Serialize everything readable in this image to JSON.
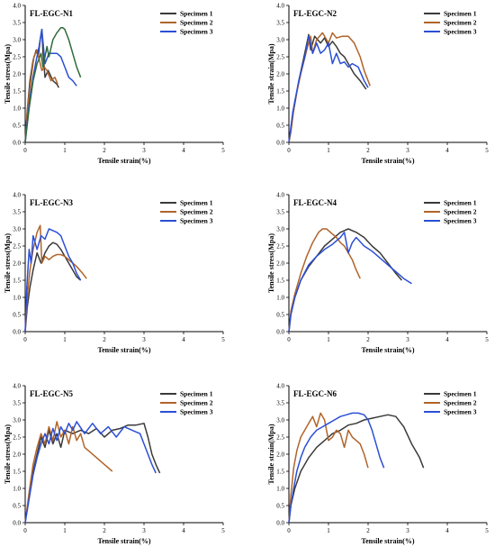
{
  "colors": {
    "specimen1": "#3a3a3a",
    "specimen2": "#b0642a",
    "specimen3": "#2b4fd6",
    "axis": "#000000"
  },
  "chart_data": [
    {
      "type": "line",
      "title": "FL-EGC-N1",
      "xlabel": "Tensile strain(%)",
      "ylabel": "Tensile stress(Mpa)",
      "xlim": [
        0,
        5
      ],
      "ylim": [
        0,
        4.0
      ],
      "xticks": [
        "0",
        "1",
        "2",
        "3",
        "4",
        "5"
      ],
      "yticks": [
        "0.0",
        "0.5",
        "1.0",
        "1.5",
        "2.0",
        "2.5",
        "3.0",
        "3.5",
        "4.0"
      ],
      "legend": "top-right",
      "series": [
        {
          "name": "Specimen 1",
          "x": [
            0,
            0.05,
            0.12,
            0.2,
            0.28,
            0.33,
            0.38,
            0.42,
            0.45,
            0.5,
            0.58,
            0.7,
            0.8,
            0.85
          ],
          "y": [
            0,
            0.9,
            1.8,
            2.4,
            2.7,
            2.5,
            3.0,
            3.3,
            2.6,
            1.9,
            2.1,
            1.8,
            1.7,
            1.6
          ]
        },
        {
          "name": "Specimen 2",
          "x": [
            0,
            0.06,
            0.14,
            0.22,
            0.3,
            0.36,
            0.42,
            0.48,
            0.55,
            0.65,
            0.75,
            0.82
          ],
          "y": [
            0,
            1.0,
            1.8,
            2.5,
            2.7,
            2.4,
            2.1,
            2.2,
            2.1,
            1.8,
            1.9,
            1.7
          ]
        },
        {
          "name": "Specimen 3",
          "x": [
            0,
            0.05,
            0.12,
            0.2,
            0.28,
            0.35,
            0.42,
            0.5,
            0.6,
            0.7,
            0.8,
            0.9,
            1.0,
            1.1,
            1.2,
            1.3
          ],
          "y": [
            0,
            0.6,
            1.3,
            1.9,
            2.4,
            2.8,
            3.3,
            2.3,
            2.6,
            2.6,
            2.6,
            2.5,
            2.2,
            1.9,
            1.8,
            1.65
          ]
        },
        {
          "name": "",
          "x": [
            0,
            0.1,
            0.2,
            0.3,
            0.4,
            0.45,
            0.55,
            0.6,
            0.7,
            0.8,
            0.9,
            0.95,
            1.0,
            1.1,
            1.2,
            1.3,
            1.4
          ],
          "y": [
            0,
            1.0,
            1.8,
            2.3,
            2.6,
            2.2,
            2.8,
            2.5,
            3.0,
            3.2,
            3.35,
            3.35,
            3.3,
            3.0,
            2.6,
            2.2,
            1.9
          ],
          "color": "#2e6b3a"
        }
      ]
    },
    {
      "type": "line",
      "title": "FL-EGC-N2",
      "xlabel": "Tensile strain(%)",
      "ylabel": "Tensile strain(Mpa)",
      "xlim": [
        0,
        5
      ],
      "ylim": [
        0,
        4.0
      ],
      "xticks": [
        "0",
        "1",
        "2",
        "3",
        "4",
        "5"
      ],
      "yticks": [
        "0.0",
        "0.5",
        "1.0",
        "1.5",
        "2.0",
        "2.5",
        "3.0",
        "3.5",
        "4.0"
      ],
      "legend": "top-right",
      "series": [
        {
          "name": "Specimen 1",
          "x": [
            0,
            0.1,
            0.25,
            0.4,
            0.5,
            0.55,
            0.65,
            0.8,
            0.9,
            1.0,
            1.1,
            1.2,
            1.3,
            1.4,
            1.5,
            1.65,
            1.8,
            1.95
          ],
          "y": [
            0,
            0.8,
            1.8,
            2.6,
            3.15,
            2.7,
            3.1,
            2.9,
            3.05,
            2.8,
            2.95,
            2.8,
            2.6,
            2.5,
            2.3,
            2.0,
            1.8,
            1.55
          ]
        },
        {
          "name": "Specimen 2",
          "x": [
            0,
            0.05,
            0.15,
            0.3,
            0.45,
            0.55,
            0.6,
            0.7,
            0.85,
            1.0,
            1.1,
            1.2,
            1.35,
            1.5,
            1.65,
            1.8,
            1.9,
            2.05
          ],
          "y": [
            0,
            0.3,
            1.2,
            2.0,
            2.7,
            3.1,
            2.6,
            3.0,
            3.2,
            2.9,
            3.2,
            3.05,
            3.1,
            3.1,
            2.9,
            2.5,
            2.1,
            1.65
          ]
        },
        {
          "name": "Specimen 3",
          "x": [
            0,
            0.1,
            0.25,
            0.4,
            0.5,
            0.6,
            0.7,
            0.8,
            0.9,
            1.0,
            1.1,
            1.2,
            1.3,
            1.4,
            1.5,
            1.6,
            1.75,
            1.9,
            2.0
          ],
          "y": [
            0,
            0.9,
            1.8,
            2.5,
            3.1,
            2.6,
            2.9,
            2.6,
            2.7,
            2.9,
            2.3,
            2.6,
            2.3,
            2.35,
            2.2,
            2.3,
            2.2,
            1.8,
            1.6
          ]
        }
      ]
    },
    {
      "type": "line",
      "title": "FL-EGC-N3",
      "xlabel": "Tensile strain(%)",
      "ylabel": "Tensile stress(Mpa)",
      "xlim": [
        0,
        5
      ],
      "ylim": [
        0,
        4.0
      ],
      "xticks": [
        "0",
        "1",
        "2",
        "3",
        "4",
        "5"
      ],
      "yticks": [
        "0.0",
        "0.5",
        "1.0",
        "1.5",
        "2.0",
        "2.5",
        "3.0",
        "3.5",
        "4.0"
      ],
      "legend": "top-right",
      "series": [
        {
          "name": "Specimen 1",
          "x": [
            0,
            0.05,
            0.12,
            0.2,
            0.3,
            0.4,
            0.5,
            0.6,
            0.7,
            0.8,
            0.9,
            1.0,
            1.1,
            1.2,
            1.3,
            1.4
          ],
          "y": [
            0,
            0.7,
            1.3,
            1.8,
            2.3,
            2.0,
            2.3,
            2.5,
            2.6,
            2.55,
            2.4,
            2.2,
            2.0,
            1.8,
            1.6,
            1.5
          ]
        },
        {
          "name": "Specimen 2",
          "x": [
            0,
            0.05,
            0.12,
            0.2,
            0.3,
            0.38,
            0.42,
            0.5,
            0.6,
            0.7,
            0.8,
            0.9,
            1.0,
            1.1,
            1.2,
            1.3,
            1.45,
            1.55
          ],
          "y": [
            0,
            1.0,
            1.8,
            2.4,
            2.9,
            3.1,
            2.0,
            2.2,
            2.1,
            2.2,
            2.25,
            2.25,
            2.2,
            2.1,
            2.0,
            1.9,
            1.7,
            1.55
          ]
        },
        {
          "name": "Specimen 3",
          "x": [
            0,
            0.04,
            0.1,
            0.15,
            0.2,
            0.3,
            0.4,
            0.5,
            0.6,
            0.7,
            0.8,
            0.9,
            1.0,
            1.1,
            1.2,
            1.3,
            1.4
          ],
          "y": [
            0,
            1.3,
            2.4,
            2.0,
            2.8,
            2.4,
            2.8,
            2.7,
            3.0,
            2.95,
            2.9,
            2.8,
            2.5,
            2.2,
            2.0,
            1.7,
            1.5
          ]
        }
      ]
    },
    {
      "type": "line",
      "title": "FL-EGC-N4",
      "xlabel": "Tensile strain(%)",
      "ylabel": "Tensile stress(Mpa)",
      "xlim": [
        0,
        5
      ],
      "ylim": [
        0,
        4.0
      ],
      "xticks": [
        "0",
        "1",
        "2",
        "3",
        "4",
        "5"
      ],
      "yticks": [
        "0.0",
        "0.5",
        "1.0",
        "1.5",
        "2.0",
        "2.5",
        "3.0",
        "3.5",
        "4.0"
      ],
      "legend": "top-right",
      "series": [
        {
          "name": "Specimen 1",
          "x": [
            0,
            0.05,
            0.15,
            0.3,
            0.5,
            0.7,
            0.9,
            1.1,
            1.3,
            1.5,
            1.7,
            1.9,
            2.1,
            2.3,
            2.5,
            2.7,
            2.85
          ],
          "y": [
            0,
            0.5,
            1.0,
            1.5,
            1.9,
            2.2,
            2.5,
            2.7,
            2.9,
            3.0,
            2.9,
            2.75,
            2.5,
            2.3,
            2.0,
            1.7,
            1.5
          ]
        },
        {
          "name": "Specimen 2",
          "x": [
            0,
            0.05,
            0.15,
            0.3,
            0.45,
            0.6,
            0.75,
            0.85,
            0.95,
            1.05,
            1.2,
            1.3,
            1.4,
            1.5,
            1.6,
            1.7,
            1.8
          ],
          "y": [
            0,
            0.6,
            1.1,
            1.7,
            2.2,
            2.6,
            2.9,
            3.0,
            3.0,
            2.9,
            2.75,
            2.6,
            2.5,
            2.3,
            2.1,
            1.8,
            1.55
          ]
        },
        {
          "name": "Specimen 3",
          "x": [
            0,
            0.05,
            0.15,
            0.3,
            0.5,
            0.7,
            0.9,
            1.1,
            1.3,
            1.4,
            1.5,
            1.6,
            1.7,
            1.9,
            2.1,
            2.3,
            2.5,
            2.7,
            2.9,
            3.1
          ],
          "y": [
            0,
            0.5,
            1.0,
            1.5,
            1.95,
            2.2,
            2.4,
            2.55,
            2.75,
            2.9,
            2.3,
            2.6,
            2.75,
            2.5,
            2.35,
            2.15,
            1.95,
            1.75,
            1.55,
            1.4
          ]
        }
      ]
    },
    {
      "type": "line",
      "title": "FL-EGC-N5",
      "xlabel": "Tensile strain(%)",
      "ylabel": "Tensile stress(Mpa)",
      "xlim": [
        0,
        5
      ],
      "ylim": [
        0,
        4.0
      ],
      "xticks": [
        "0",
        "1",
        "2",
        "3",
        "4",
        "5"
      ],
      "yticks": [
        "0.0",
        "0.5",
        "1.0",
        "1.5",
        "2.0",
        "2.5",
        "3.0",
        "3.5",
        "4.0"
      ],
      "legend": "top-right",
      "series": [
        {
          "name": "Specimen 1",
          "x": [
            0,
            0.1,
            0.2,
            0.3,
            0.4,
            0.5,
            0.6,
            0.7,
            0.8,
            0.9,
            1.0,
            1.2,
            1.4,
            1.6,
            1.8,
            2.0,
            2.2,
            2.4,
            2.6,
            2.8,
            3.0,
            3.1,
            3.2,
            3.3,
            3.4
          ],
          "y": [
            0,
            0.8,
            1.5,
            2.0,
            2.5,
            2.2,
            2.7,
            2.3,
            2.6,
            2.2,
            2.7,
            2.6,
            2.7,
            2.6,
            2.75,
            2.5,
            2.7,
            2.75,
            2.85,
            2.85,
            2.9,
            2.5,
            2.0,
            1.7,
            1.45
          ]
        },
        {
          "name": "Specimen 2",
          "x": [
            0,
            0.1,
            0.2,
            0.3,
            0.4,
            0.5,
            0.6,
            0.7,
            0.8,
            0.9,
            1.0,
            1.1,
            1.2,
            1.3,
            1.4,
            1.5,
            1.6,
            1.8,
            2.0,
            2.2
          ],
          "y": [
            0,
            0.9,
            1.7,
            2.2,
            2.6,
            2.3,
            2.8,
            2.4,
            2.95,
            2.5,
            2.7,
            2.3,
            2.8,
            2.4,
            2.6,
            2.2,
            2.1,
            1.9,
            1.7,
            1.5
          ]
        },
        {
          "name": "Specimen 3",
          "x": [
            0,
            0.1,
            0.2,
            0.3,
            0.4,
            0.5,
            0.6,
            0.7,
            0.8,
            0.9,
            1.0,
            1.1,
            1.2,
            1.3,
            1.5,
            1.7,
            1.9,
            2.1,
            2.3,
            2.5,
            2.7,
            2.9,
            3.0,
            3.1,
            3.2,
            3.3
          ],
          "y": [
            0,
            0.7,
            1.4,
            1.9,
            2.3,
            2.6,
            2.3,
            2.75,
            2.4,
            2.8,
            2.6,
            2.9,
            2.7,
            2.95,
            2.6,
            2.9,
            2.6,
            2.8,
            2.5,
            2.8,
            2.7,
            2.6,
            2.3,
            2.0,
            1.7,
            1.45
          ]
        }
      ]
    },
    {
      "type": "line",
      "title": "FL-EGC-N6",
      "xlabel": "Tensile strain(%)",
      "ylabel": "Tensile strain(Mpa)",
      "xlim": [
        0,
        5
      ],
      "ylim": [
        0,
        4.0
      ],
      "xticks": [
        "0",
        "1",
        "2",
        "3",
        "4",
        "5"
      ],
      "yticks": [
        "0.0",
        "0.5",
        "1.0",
        "1.5",
        "2.0",
        "2.5",
        "3.0",
        "3.5",
        "4.0"
      ],
      "legend": "top-right",
      "series": [
        {
          "name": "Specimen 1",
          "x": [
            0,
            0.05,
            0.15,
            0.3,
            0.5,
            0.7,
            0.9,
            1.1,
            1.3,
            1.5,
            1.7,
            1.9,
            2.1,
            2.3,
            2.5,
            2.7,
            2.9,
            3.1,
            3.3,
            3.4
          ],
          "y": [
            0,
            0.5,
            1.0,
            1.5,
            1.9,
            2.2,
            2.4,
            2.6,
            2.7,
            2.85,
            2.9,
            3.0,
            3.05,
            3.1,
            3.15,
            3.1,
            2.8,
            2.3,
            1.9,
            1.6
          ]
        },
        {
          "name": "Specimen 2",
          "x": [
            0,
            0.05,
            0.12,
            0.2,
            0.3,
            0.4,
            0.5,
            0.6,
            0.7,
            0.8,
            0.9,
            1.0,
            1.1,
            1.2,
            1.3,
            1.4,
            1.5,
            1.6,
            1.7,
            1.8,
            1.9,
            2.0
          ],
          "y": [
            0,
            0.8,
            1.6,
            2.1,
            2.5,
            2.7,
            2.9,
            3.1,
            2.8,
            3.2,
            3.0,
            2.4,
            2.5,
            2.7,
            2.6,
            2.2,
            2.7,
            2.5,
            2.4,
            2.3,
            2.0,
            1.6
          ]
        },
        {
          "name": "Specimen 3",
          "x": [
            0,
            0.05,
            0.12,
            0.2,
            0.3,
            0.4,
            0.55,
            0.7,
            0.85,
            1.0,
            1.15,
            1.3,
            1.45,
            1.6,
            1.75,
            1.9,
            2.0,
            2.1,
            2.2,
            2.3,
            2.4
          ],
          "y": [
            0,
            0.5,
            1.0,
            1.5,
            1.9,
            2.2,
            2.5,
            2.7,
            2.8,
            2.9,
            3.0,
            3.1,
            3.15,
            3.2,
            3.2,
            3.15,
            3.0,
            2.7,
            2.3,
            1.9,
            1.6
          ]
        }
      ]
    }
  ]
}
